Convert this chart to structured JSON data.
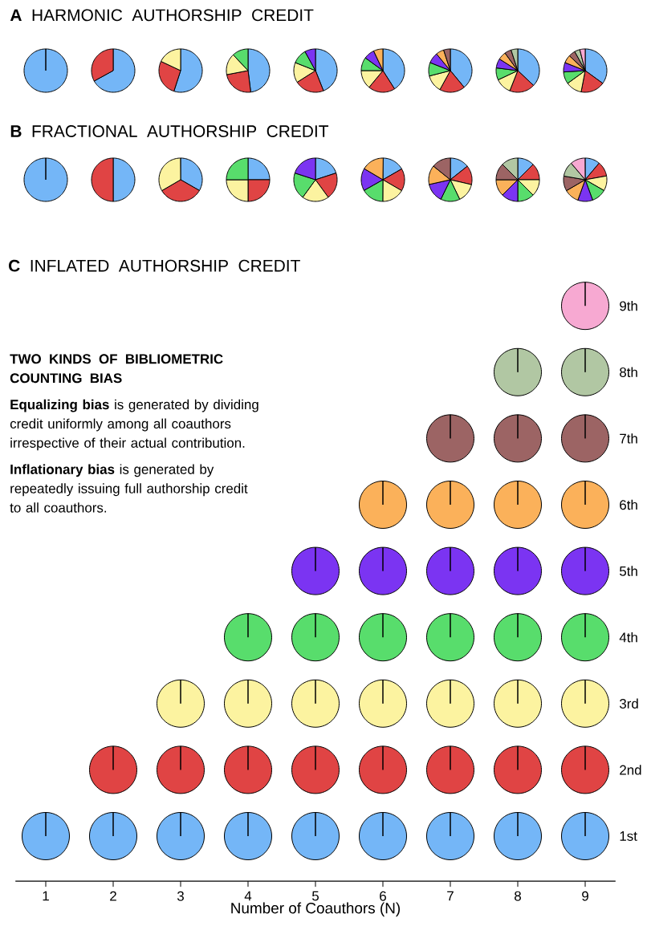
{
  "chart_data": [
    {
      "type": "pie",
      "title": "**A** HARMONIC AUTHORSHIP CREDIT",
      "categories": [
        null
      ],
      "values": [
        100
      ],
      "colors": [
        "#74b6f7"
      ]
    },
    {
      "type": "pie",
      "categories": [
        null,
        null
      ],
      "values": [
        67,
        33
      ],
      "colors": [
        "#74b6f7",
        "#e04444"
      ]
    },
    {
      "type": "pie",
      "categories": [
        null,
        null,
        null
      ],
      "values": [
        55,
        27,
        18
      ],
      "colors": [
        "#74b6f7",
        "#e04444",
        "#fcf3a0"
      ]
    },
    {
      "type": "pie",
      "categories": [
        null,
        null,
        null,
        null
      ],
      "values": [
        48,
        24,
        16,
        12
      ],
      "colors": [
        "#74b6f7",
        "#e04444",
        "#fcf3a0",
        "#58dd6c"
      ]
    },
    {
      "type": "pie",
      "categories": [
        null,
        null,
        null,
        null,
        null
      ],
      "values": [
        44,
        22,
        15,
        11,
        8
      ],
      "colors": [
        "#74b6f7",
        "#e04444",
        "#fcf3a0",
        "#58dd6c",
        "#7b34f2"
      ]
    },
    {
      "type": "pie",
      "categories": [
        null,
        null,
        null,
        null,
        null,
        null
      ],
      "values": [
        41,
        20,
        14,
        10,
        8,
        7
      ],
      "colors": [
        "#74b6f7",
        "#e04444",
        "#fcf3a0",
        "#58dd6c",
        "#7b34f2",
        "#fbb15a"
      ]
    },
    {
      "type": "pie",
      "categories": [
        null,
        null,
        null,
        null,
        null,
        null,
        null
      ],
      "values": [
        39,
        19,
        13,
        10,
        8,
        6,
        5
      ],
      "colors": [
        "#74b6f7",
        "#e04444",
        "#fcf3a0",
        "#58dd6c",
        "#7b34f2",
        "#fbb15a",
        "#9c6464"
      ]
    },
    {
      "type": "pie",
      "categories": [
        null,
        null,
        null,
        null,
        null,
        null,
        null,
        null
      ],
      "values": [
        37,
        19,
        12,
        9,
        7,
        6,
        5,
        5
      ],
      "colors": [
        "#74b6f7",
        "#e04444",
        "#fcf3a0",
        "#58dd6c",
        "#7b34f2",
        "#fbb15a",
        "#9c6464",
        "#b1c7a3"
      ]
    },
    {
      "type": "pie",
      "categories": [
        null,
        null,
        null,
        null,
        null,
        null,
        null,
        null,
        null
      ],
      "values": [
        35,
        18,
        12,
        9,
        7,
        6,
        5,
        4,
        4
      ],
      "colors": [
        "#74b6f7",
        "#e04444",
        "#fcf3a0",
        "#58dd6c",
        "#7b34f2",
        "#fbb15a",
        "#9c6464",
        "#b1c7a3",
        "#f7a9d2"
      ]
    },
    {
      "type": "pie",
      "title": "**B** FRACTIONAL AUTHORSHIP CREDIT",
      "categories": [
        null
      ],
      "values": [
        100
      ],
      "colors": [
        "#74b6f7"
      ]
    },
    {
      "type": "pie",
      "categories": [
        null,
        null
      ],
      "values": [
        50,
        50
      ],
      "colors": [
        "#74b6f7",
        "#e04444"
      ]
    },
    {
      "type": "pie",
      "categories": [
        null,
        null,
        null
      ],
      "values": [
        33.3,
        33.3,
        33.3
      ],
      "colors": [
        "#74b6f7",
        "#e04444",
        "#fcf3a0"
      ]
    },
    {
      "type": "pie",
      "categories": [
        null,
        null,
        null,
        null
      ],
      "values": [
        25,
        25,
        25,
        25
      ],
      "colors": [
        "#74b6f7",
        "#e04444",
        "#fcf3a0",
        "#58dd6c"
      ]
    },
    {
      "type": "pie",
      "categories": [
        null,
        null,
        null,
        null,
        null
      ],
      "values": [
        20,
        20,
        20,
        20,
        20
      ],
      "colors": [
        "#74b6f7",
        "#e04444",
        "#fcf3a0",
        "#58dd6c",
        "#7b34f2"
      ]
    },
    {
      "type": "pie",
      "categories": [
        null,
        null,
        null,
        null,
        null,
        null
      ],
      "values": [
        16.7,
        16.7,
        16.7,
        16.7,
        16.7,
        16.7
      ],
      "colors": [
        "#74b6f7",
        "#e04444",
        "#fcf3a0",
        "#58dd6c",
        "#7b34f2",
        "#fbb15a"
      ]
    },
    {
      "type": "pie",
      "categories": [
        null,
        null,
        null,
        null,
        null,
        null,
        null
      ],
      "values": [
        14.3,
        14.3,
        14.3,
        14.3,
        14.3,
        14.3,
        14.3
      ],
      "colors": [
        "#74b6f7",
        "#e04444",
        "#fcf3a0",
        "#58dd6c",
        "#7b34f2",
        "#fbb15a",
        "#9c6464"
      ]
    },
    {
      "type": "pie",
      "categories": [
        null,
        null,
        null,
        null,
        null,
        null,
        null,
        null
      ],
      "values": [
        12.5,
        12.5,
        12.5,
        12.5,
        12.5,
        12.5,
        12.5,
        12.5
      ],
      "colors": [
        "#74b6f7",
        "#e04444",
        "#fcf3a0",
        "#58dd6c",
        "#7b34f2",
        "#fbb15a",
        "#9c6464",
        "#b1c7a3"
      ]
    },
    {
      "type": "pie",
      "categories": [
        null,
        null,
        null,
        null,
        null,
        null,
        null,
        null,
        null
      ],
      "values": [
        11.1,
        11.1,
        11.1,
        11.1,
        11.1,
        11.1,
        11.1,
        11.1,
        11.1
      ],
      "colors": [
        "#74b6f7",
        "#e04444",
        "#fcf3a0",
        "#58dd6c",
        "#7b34f2",
        "#fbb15a",
        "#9c6464",
        "#b1c7a3",
        "#f7a9d2"
      ]
    },
    {
      "type": "scatter",
      "title": "**C** INFLATED AUTHORSHIP CREDIT",
      "xlabel": "Number of Coauthors (N)",
      "marker": "circle",
      "xlim": [
        0.55,
        9.45
      ],
      "xticks": [
        1,
        2,
        3,
        4,
        5,
        6,
        7,
        8,
        9
      ],
      "ylim": [
        0.32,
        9
      ],
      "yticks": [
        {
          "value": 1,
          "label": "1st"
        },
        {
          "value": 2,
          "label": "2nd"
        },
        {
          "value": 3,
          "label": "3rd"
        },
        {
          "value": 4,
          "label": "4th"
        },
        {
          "value": 5,
          "label": "5th"
        },
        {
          "value": 6,
          "label": "6th"
        },
        {
          "value": 7,
          "label": "7th"
        },
        {
          "value": 8,
          "label": "8th"
        },
        {
          "value": 9,
          "label": "9th"
        }
      ],
      "annotations": [
        "TWO KINDS OF BIBLIOMETRIC COUNTING BIAS",
        "**Equalizing bias** is generated by dividing credit uniformly among all coauthors irrespective of their actual contribution.",
        "**Inflationary bias** is generated by repeatedly issuing full authorship credit to all coauthors."
      ],
      "series": [
        {
          "color": "#74b6f7",
          "x": [
            1,
            2,
            3,
            4,
            5,
            6,
            7,
            8,
            9
          ],
          "values": [
            1,
            1,
            1,
            1,
            1,
            1,
            1,
            1,
            1
          ]
        },
        {
          "color": "#e04444",
          "x": [
            2,
            3,
            4,
            5,
            6,
            7,
            8,
            9
          ],
          "values": [
            2,
            2,
            2,
            2,
            2,
            2,
            2,
            2
          ]
        },
        {
          "color": "#fcf3a0",
          "x": [
            3,
            4,
            5,
            6,
            7,
            8,
            9
          ],
          "values": [
            3,
            3,
            3,
            3,
            3,
            3,
            3
          ]
        },
        {
          "color": "#58dd6c",
          "x": [
            4,
            5,
            6,
            7,
            8,
            9
          ],
          "values": [
            4,
            4,
            4,
            4,
            4,
            4
          ]
        },
        {
          "color": "#7b34f2",
          "x": [
            5,
            6,
            7,
            8,
            9
          ],
          "values": [
            5,
            5,
            5,
            5,
            5
          ]
        },
        {
          "color": "#fbb15a",
          "x": [
            6,
            7,
            8,
            9
          ],
          "values": [
            6,
            6,
            6,
            6
          ]
        },
        {
          "color": "#9c6464",
          "x": [
            7,
            8,
            9
          ],
          "values": [
            7,
            7,
            7
          ]
        },
        {
          "color": "#b1c7a3",
          "x": [
            8,
            9
          ],
          "values": [
            8,
            8
          ]
        },
        {
          "color": "#f7a9d2",
          "x": [
            9
          ],
          "values": [
            9
          ]
        }
      ]
    }
  ]
}
